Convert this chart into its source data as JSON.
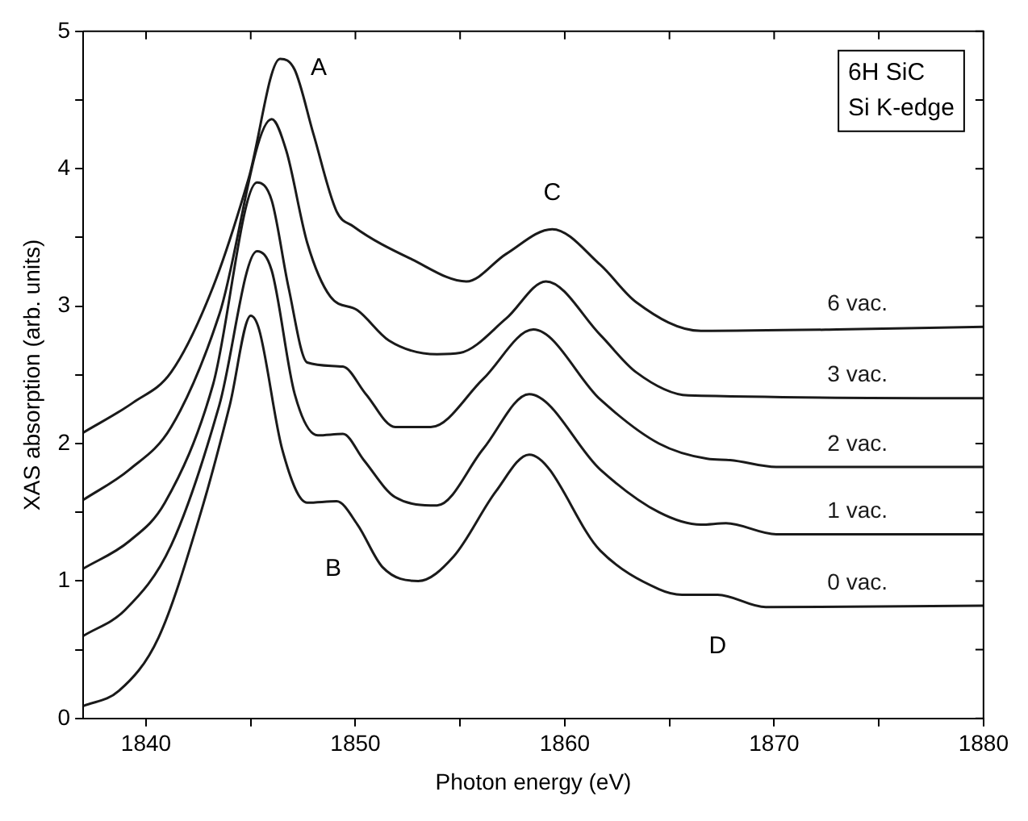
{
  "chart_data": {
    "type": "line",
    "xlabel": "Photon energy (eV)",
    "ylabel": "XAS absorption (arb. units)",
    "xlim": [
      1837,
      1880
    ],
    "ylim": [
      0,
      5
    ],
    "xticks": [
      1840,
      {
        "value": 1845,
        "label": null
      },
      1850,
      {
        "value": 1855,
        "label": null
      },
      1860,
      {
        "value": 1865,
        "label": null
      },
      1870,
      {
        "value": 1875,
        "label": null
      },
      1880
    ],
    "yticks": [
      0,
      {
        "value": 0.5,
        "label": null
      },
      1,
      {
        "value": 1.5,
        "label": null
      },
      2,
      {
        "value": 2.5,
        "label": null
      },
      3,
      {
        "value": 3.5,
        "label": null
      },
      4,
      {
        "value": 4.5,
        "label": null
      },
      5
    ],
    "marker": "none",
    "line_style": "solid",
    "legend": false,
    "annotations": [
      "6H SiC",
      "Si K-edge",
      {
        "text": "A",
        "x": 1846.4,
        "y": 4.8
      },
      {
        "text": "B",
        "x": 1849.1,
        "y": 1.58
      },
      {
        "text": "C",
        "x": 1859.4,
        "y": 3.56
      },
      {
        "text": "D",
        "x": 1867.3,
        "y": 0.9
      }
    ],
    "series": [
      {
        "name": "6 vac.",
        "color": "#1a1a1a",
        "x": [
          1837.0,
          1839.4,
          1841.2,
          1843.2,
          1844.9,
          1846.4,
          1847.1,
          1848.0,
          1849.1,
          1849.9,
          1852.7,
          1855.3,
          1857.2,
          1859.4,
          1861.7,
          1863.4,
          1866.5,
          1873.0,
          1880
        ],
        "values": [
          2.08,
          2.3,
          2.52,
          3.14,
          3.93,
          4.8,
          4.72,
          4.25,
          3.69,
          3.58,
          3.34,
          3.18,
          3.38,
          3.56,
          3.3,
          3.03,
          2.82,
          2.83,
          2.85
        ]
      },
      {
        "name": "3 vac.",
        "color": "#1a1a1a",
        "x": [
          1837.0,
          1839.2,
          1841.2,
          1843.5,
          1846.0,
          1846.7,
          1847.7,
          1848.8,
          1850.1,
          1851.6,
          1853.9,
          1855.0,
          1857.2,
          1859.1,
          1861.7,
          1863.4,
          1865.9,
          1880
        ],
        "values": [
          1.59,
          1.81,
          2.12,
          2.94,
          4.36,
          4.13,
          3.46,
          3.07,
          2.97,
          2.75,
          2.65,
          2.66,
          2.91,
          3.18,
          2.79,
          2.52,
          2.35,
          2.33
        ]
      },
      {
        "name": "2 vac.",
        "color": "#1a1a1a",
        "x": [
          1837.0,
          1839.2,
          1840.9,
          1843.2,
          1845.3,
          1846.0,
          1846.8,
          1847.7,
          1849.4,
          1850.5,
          1851.9,
          1853.6,
          1856.1,
          1858.5,
          1861.7,
          1864.5,
          1866.8,
          1867.9,
          1870.1,
          1880
        ],
        "values": [
          1.09,
          1.29,
          1.57,
          2.43,
          3.9,
          3.77,
          3.14,
          2.59,
          2.56,
          2.36,
          2.12,
          2.12,
          2.47,
          2.83,
          2.32,
          2.0,
          1.89,
          1.88,
          1.83,
          1.83
        ]
      },
      {
        "name": "1 vac.",
        "color": "#1a1a1a",
        "x": [
          1837.0,
          1839.0,
          1841.2,
          1843.5,
          1845.3,
          1846.0,
          1847.1,
          1848.2,
          1849.4,
          1850.4,
          1851.9,
          1853.9,
          1856.1,
          1858.3,
          1861.7,
          1864.5,
          1866.5,
          1867.7,
          1870.1,
          1880
        ],
        "values": [
          0.6,
          0.79,
          1.26,
          2.28,
          3.4,
          3.26,
          2.36,
          2.06,
          2.07,
          1.88,
          1.61,
          1.55,
          1.96,
          2.36,
          1.81,
          1.5,
          1.41,
          1.42,
          1.34,
          1.34
        ]
      },
      {
        "name": "0 vac.",
        "color": "#1a1a1a",
        "x": [
          1837.0,
          1838.7,
          1840.6,
          1842.6,
          1844.0,
          1845.0,
          1845.4,
          1846.5,
          1847.7,
          1849.1,
          1850.1,
          1851.3,
          1853.0,
          1854.7,
          1856.7,
          1858.3,
          1861.7,
          1864.5,
          1865.6,
          1867.3,
          1869.6,
          1880
        ],
        "values": [
          0.09,
          0.2,
          0.59,
          1.49,
          2.28,
          2.93,
          2.83,
          1.96,
          1.57,
          1.58,
          1.41,
          1.1,
          1.0,
          1.18,
          1.65,
          1.92,
          1.22,
          0.94,
          0.9,
          0.9,
          0.81,
          0.82
        ]
      }
    ]
  }
}
